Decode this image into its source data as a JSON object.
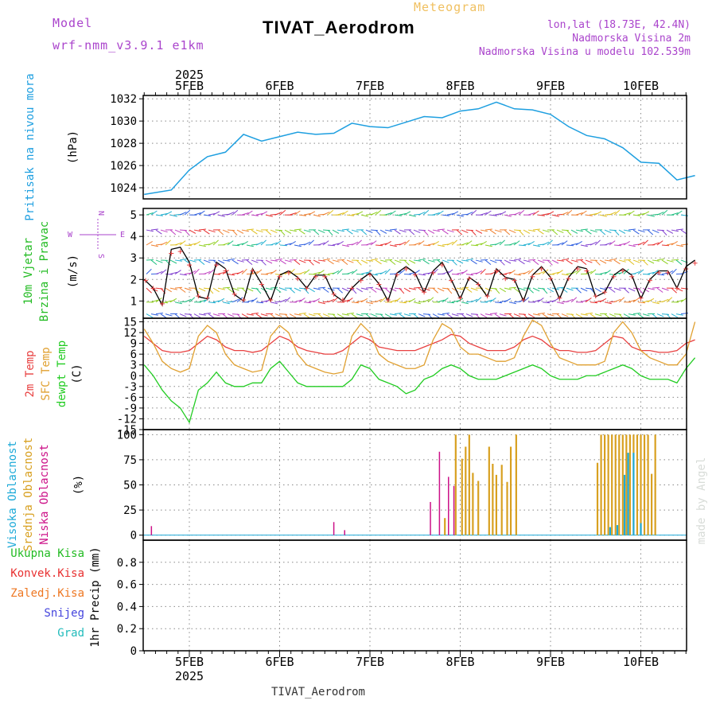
{
  "header": {
    "model_label": "Model",
    "model_name": "wrf-nmm_v3.9.1 e1km",
    "meteogram_label": "Meteogram",
    "title": "TIVAT_Aerodrom",
    "lonlat": "lon,lat (18.73E, 42.4N)",
    "elevation": "Nadmorska Visina 2m",
    "model_elevation": "Nadmorska Visina u modelu 102.539m",
    "bottom_title": "TIVAT_Aerodrom",
    "credit": "made by Angel",
    "year_top": "2025",
    "year_bottom": "2025"
  },
  "colors": {
    "pressure": "#1e9fe0",
    "wind_label": "#22bb22",
    "temp2m": "#e84040",
    "sfc": "#e0a030",
    "dewpt": "#22cc22",
    "cloud_high": "#1eaad8",
    "cloud_mid": "#d8a020",
    "cloud_low": "#cc1188",
    "precip_total": "#22bb22",
    "precip_conv": "#e83030",
    "precip_frz": "#ee7722",
    "snow": "#4444dd",
    "grad": "#22bbbb",
    "header_purple": "#aa44cc",
    "header_orange": "#f0c060"
  },
  "days": [
    "5FEB",
    "6FEB",
    "7FEB",
    "8FEB",
    "9FEB",
    "10FEB"
  ],
  "chart_data": [
    {
      "type": "line",
      "name": "pressure",
      "ylabel_lines": [
        "Pritisak na nivou mora",
        "(hPa)"
      ],
      "ylim": [
        1023,
        1032.3
      ],
      "yticks": [
        1024,
        1026,
        1028,
        1030,
        1032
      ],
      "x_days": [
        0,
        0.3,
        0.5,
        0.7,
        0.9,
        1.1,
        1.3,
        1.5,
        1.7,
        1.9,
        2.1,
        2.3,
        2.5,
        2.7,
        2.9,
        3.1,
        3.3,
        3.5,
        3.7,
        3.9,
        4.1,
        4.3,
        4.5,
        4.7,
        4.9,
        5.1,
        5.3,
        5.5,
        5.7,
        5.9,
        6.1
      ],
      "series": [
        {
          "values": [
            1023.4,
            1023.8,
            1025.6,
            1026.8,
            1027.2,
            1028.8,
            1028.2,
            1028.6,
            1029.0,
            1028.8,
            1028.9,
            1029.8,
            1029.5,
            1029.4,
            1029.9,
            1030.4,
            1030.3,
            1030.9,
            1031.1,
            1031.7,
            1031.1,
            1031.0,
            1030.6,
            1029.5,
            1028.7,
            1028.4,
            1027.6,
            1026.3,
            1026.2,
            1024.7,
            1025.1
          ]
        }
      ]
    },
    {
      "type": "line",
      "name": "wind",
      "ylabel_lines": [
        "10m Vjetar",
        "Brzina i Pravac",
        "(m/s)"
      ],
      "compass": [
        "N",
        "E",
        "W",
        "S"
      ],
      "ylim": [
        0.2,
        5.3
      ],
      "yticks": [
        1,
        2,
        3,
        4,
        5
      ],
      "x_days": [
        0,
        0.1,
        0.2,
        0.3,
        0.4,
        0.5,
        0.6,
        0.7,
        0.8,
        0.9,
        1.0,
        1.1,
        1.2,
        1.3,
        1.4,
        1.5,
        1.6,
        1.7,
        1.8,
        1.9,
        2.0,
        2.1,
        2.2,
        2.3,
        2.4,
        2.5,
        2.6,
        2.7,
        2.8,
        2.9,
        3.0,
        3.1,
        3.2,
        3.3,
        3.4,
        3.5,
        3.6,
        3.7,
        3.8,
        3.9,
        4.0,
        4.1,
        4.2,
        4.3,
        4.4,
        4.5,
        4.6,
        4.7,
        4.8,
        4.9,
        5.0,
        5.1,
        5.2,
        5.3,
        5.4,
        5.5,
        5.6,
        5.7,
        5.8,
        5.9,
        6.0,
        6.1
      ],
      "series": [
        {
          "values": [
            2.0,
            1.6,
            0.8,
            3.4,
            3.5,
            2.8,
            1.2,
            1.1,
            2.8,
            2.5,
            1.3,
            1.0,
            2.5,
            1.8,
            1.0,
            2.2,
            2.4,
            2.1,
            1.6,
            2.2,
            2.2,
            1.3,
            1.0,
            1.6,
            2.0,
            2.3,
            1.8,
            1.0,
            2.3,
            2.6,
            2.3,
            1.4,
            2.4,
            2.8,
            2.0,
            1.1,
            2.1,
            1.8,
            1.2,
            2.5,
            2.1,
            2.0,
            1.0,
            2.2,
            2.6,
            2.1,
            1.1,
            2.1,
            2.6,
            2.5,
            1.2,
            1.4,
            2.2,
            2.5,
            2.2,
            1.1,
            2.0,
            2.4,
            2.4,
            1.6,
            2.6,
            2.9
          ]
        }
      ]
    },
    {
      "type": "line",
      "name": "temperature",
      "ylabel_lines": [
        "2m Temp",
        "SFC Temp",
        "dewpt Temp",
        "(C)"
      ],
      "ylim": [
        -15,
        16
      ],
      "yticks": [
        -15,
        -12,
        -9,
        -6,
        -3,
        0,
        3,
        6,
        9,
        12,
        15
      ],
      "x_days": [
        0,
        0.1,
        0.2,
        0.3,
        0.4,
        0.5,
        0.6,
        0.7,
        0.8,
        0.9,
        1.0,
        1.1,
        1.2,
        1.3,
        1.4,
        1.5,
        1.6,
        1.7,
        1.8,
        1.9,
        2.0,
        2.1,
        2.2,
        2.3,
        2.4,
        2.5,
        2.6,
        2.7,
        2.8,
        2.9,
        3.0,
        3.1,
        3.2,
        3.3,
        3.4,
        3.5,
        3.6,
        3.7,
        3.8,
        3.9,
        4.0,
        4.1,
        4.2,
        4.3,
        4.4,
        4.5,
        4.6,
        4.7,
        4.8,
        4.9,
        5.0,
        5.1,
        5.2,
        5.3,
        5.4,
        5.5,
        5.6,
        5.7,
        5.8,
        5.9,
        6.0,
        6.1
      ],
      "series": [
        {
          "name": "2m Temp",
          "values": [
            11,
            9,
            7,
            6.5,
            6.5,
            7,
            9,
            11,
            10,
            8,
            7,
            7,
            6.5,
            7,
            9,
            11,
            10,
            8,
            7,
            6.5,
            6,
            6,
            7,
            9,
            11,
            10,
            8,
            7.5,
            7,
            7,
            7,
            8,
            9,
            10,
            11.5,
            11,
            9,
            8,
            7,
            7,
            7,
            8,
            10,
            11,
            10,
            8,
            7,
            7,
            6.5,
            6.5,
            7,
            9,
            11,
            10.5,
            8,
            7,
            7,
            6.5,
            6.5,
            7,
            9,
            10
          ]
        },
        {
          "name": "SFC Temp",
          "values": [
            13,
            9,
            4,
            2,
            1,
            2,
            11,
            14,
            12,
            6,
            3,
            2,
            1,
            1.5,
            11,
            14,
            12,
            6,
            3,
            2,
            1,
            0.5,
            1,
            11,
            14.5,
            12,
            6,
            4,
            3,
            2,
            2,
            3,
            10,
            14.5,
            13,
            8,
            6,
            6,
            5,
            4,
            4,
            5,
            11,
            15.5,
            14,
            9,
            5,
            4,
            3,
            3,
            3,
            4,
            12,
            15,
            12,
            7,
            5,
            4,
            3,
            3,
            6,
            15
          ]
        },
        {
          "name": "dewpt Temp",
          "values": [
            3,
            0,
            -4,
            -7,
            -9,
            -13,
            -4,
            -2,
            1,
            -2,
            -3,
            -3,
            -2,
            -2,
            2,
            4,
            1,
            -2,
            -3,
            -3,
            -3,
            -3,
            -3,
            -1,
            3,
            2,
            -1,
            -2,
            -3,
            -5,
            -4,
            -1,
            0,
            2,
            3,
            2,
            0,
            -1,
            -1,
            -1,
            0,
            1,
            2,
            3,
            2,
            0,
            -1,
            -1,
            -1,
            0,
            0,
            1,
            2,
            3,
            2,
            0,
            -1,
            -1,
            -1,
            -2,
            2,
            5
          ]
        }
      ]
    },
    {
      "type": "bar",
      "name": "clouds",
      "ylabel_lines": [
        "Visoka Oblacnost",
        "Srednja Oblacnost",
        "Niska Oblacnost",
        "(%)"
      ],
      "ylim": [
        -5,
        105
      ],
      "yticks": [
        0,
        25,
        50,
        75,
        100
      ],
      "series": [
        {
          "name": "Niska Oblacnost",
          "x_days": [
            0.08,
            2.1,
            2.22,
            3.17,
            3.27,
            3.37,
            3.43
          ],
          "values": [
            9,
            13,
            5,
            33,
            83,
            58,
            49
          ]
        },
        {
          "name": "Srednja Oblacnost",
          "x_days": [
            3.33,
            3.45,
            3.52,
            3.56,
            3.6,
            3.64,
            3.7,
            3.82,
            3.86,
            3.9,
            3.96,
            4.02,
            4.06,
            4.12,
            5.02,
            5.06,
            5.1,
            5.14,
            5.18,
            5.22,
            5.26,
            5.3,
            5.34,
            5.38,
            5.42,
            5.46,
            5.5,
            5.54,
            5.58,
            5.62,
            5.66
          ],
          "values": [
            17,
            100,
            76,
            88,
            100,
            62,
            54,
            88,
            71,
            60,
            70,
            53,
            88,
            100,
            72,
            100,
            100,
            100,
            100,
            100,
            100,
            100,
            100,
            100,
            100,
            100,
            100,
            100,
            100,
            61,
            100
          ]
        },
        {
          "name": "Visoka Oblacnost",
          "x_days": [
            5.16,
            5.24,
            5.32,
            5.36,
            5.42,
            5.5
          ],
          "values": [
            8,
            10,
            60,
            82,
            82,
            12
          ]
        }
      ]
    },
    {
      "type": "bar",
      "name": "precipitation",
      "ylabel_lines": [
        "1hr Precip (mm)"
      ],
      "legend": [
        "Ukupna Kisa",
        "Konvek.Kisa",
        "Zaledj.Kisa",
        "Snijeg",
        "Grad"
      ],
      "ylim": [
        0,
        1.0
      ],
      "yticks": [
        0,
        0.2,
        0.4,
        0.6,
        0.8
      ],
      "series": []
    }
  ]
}
